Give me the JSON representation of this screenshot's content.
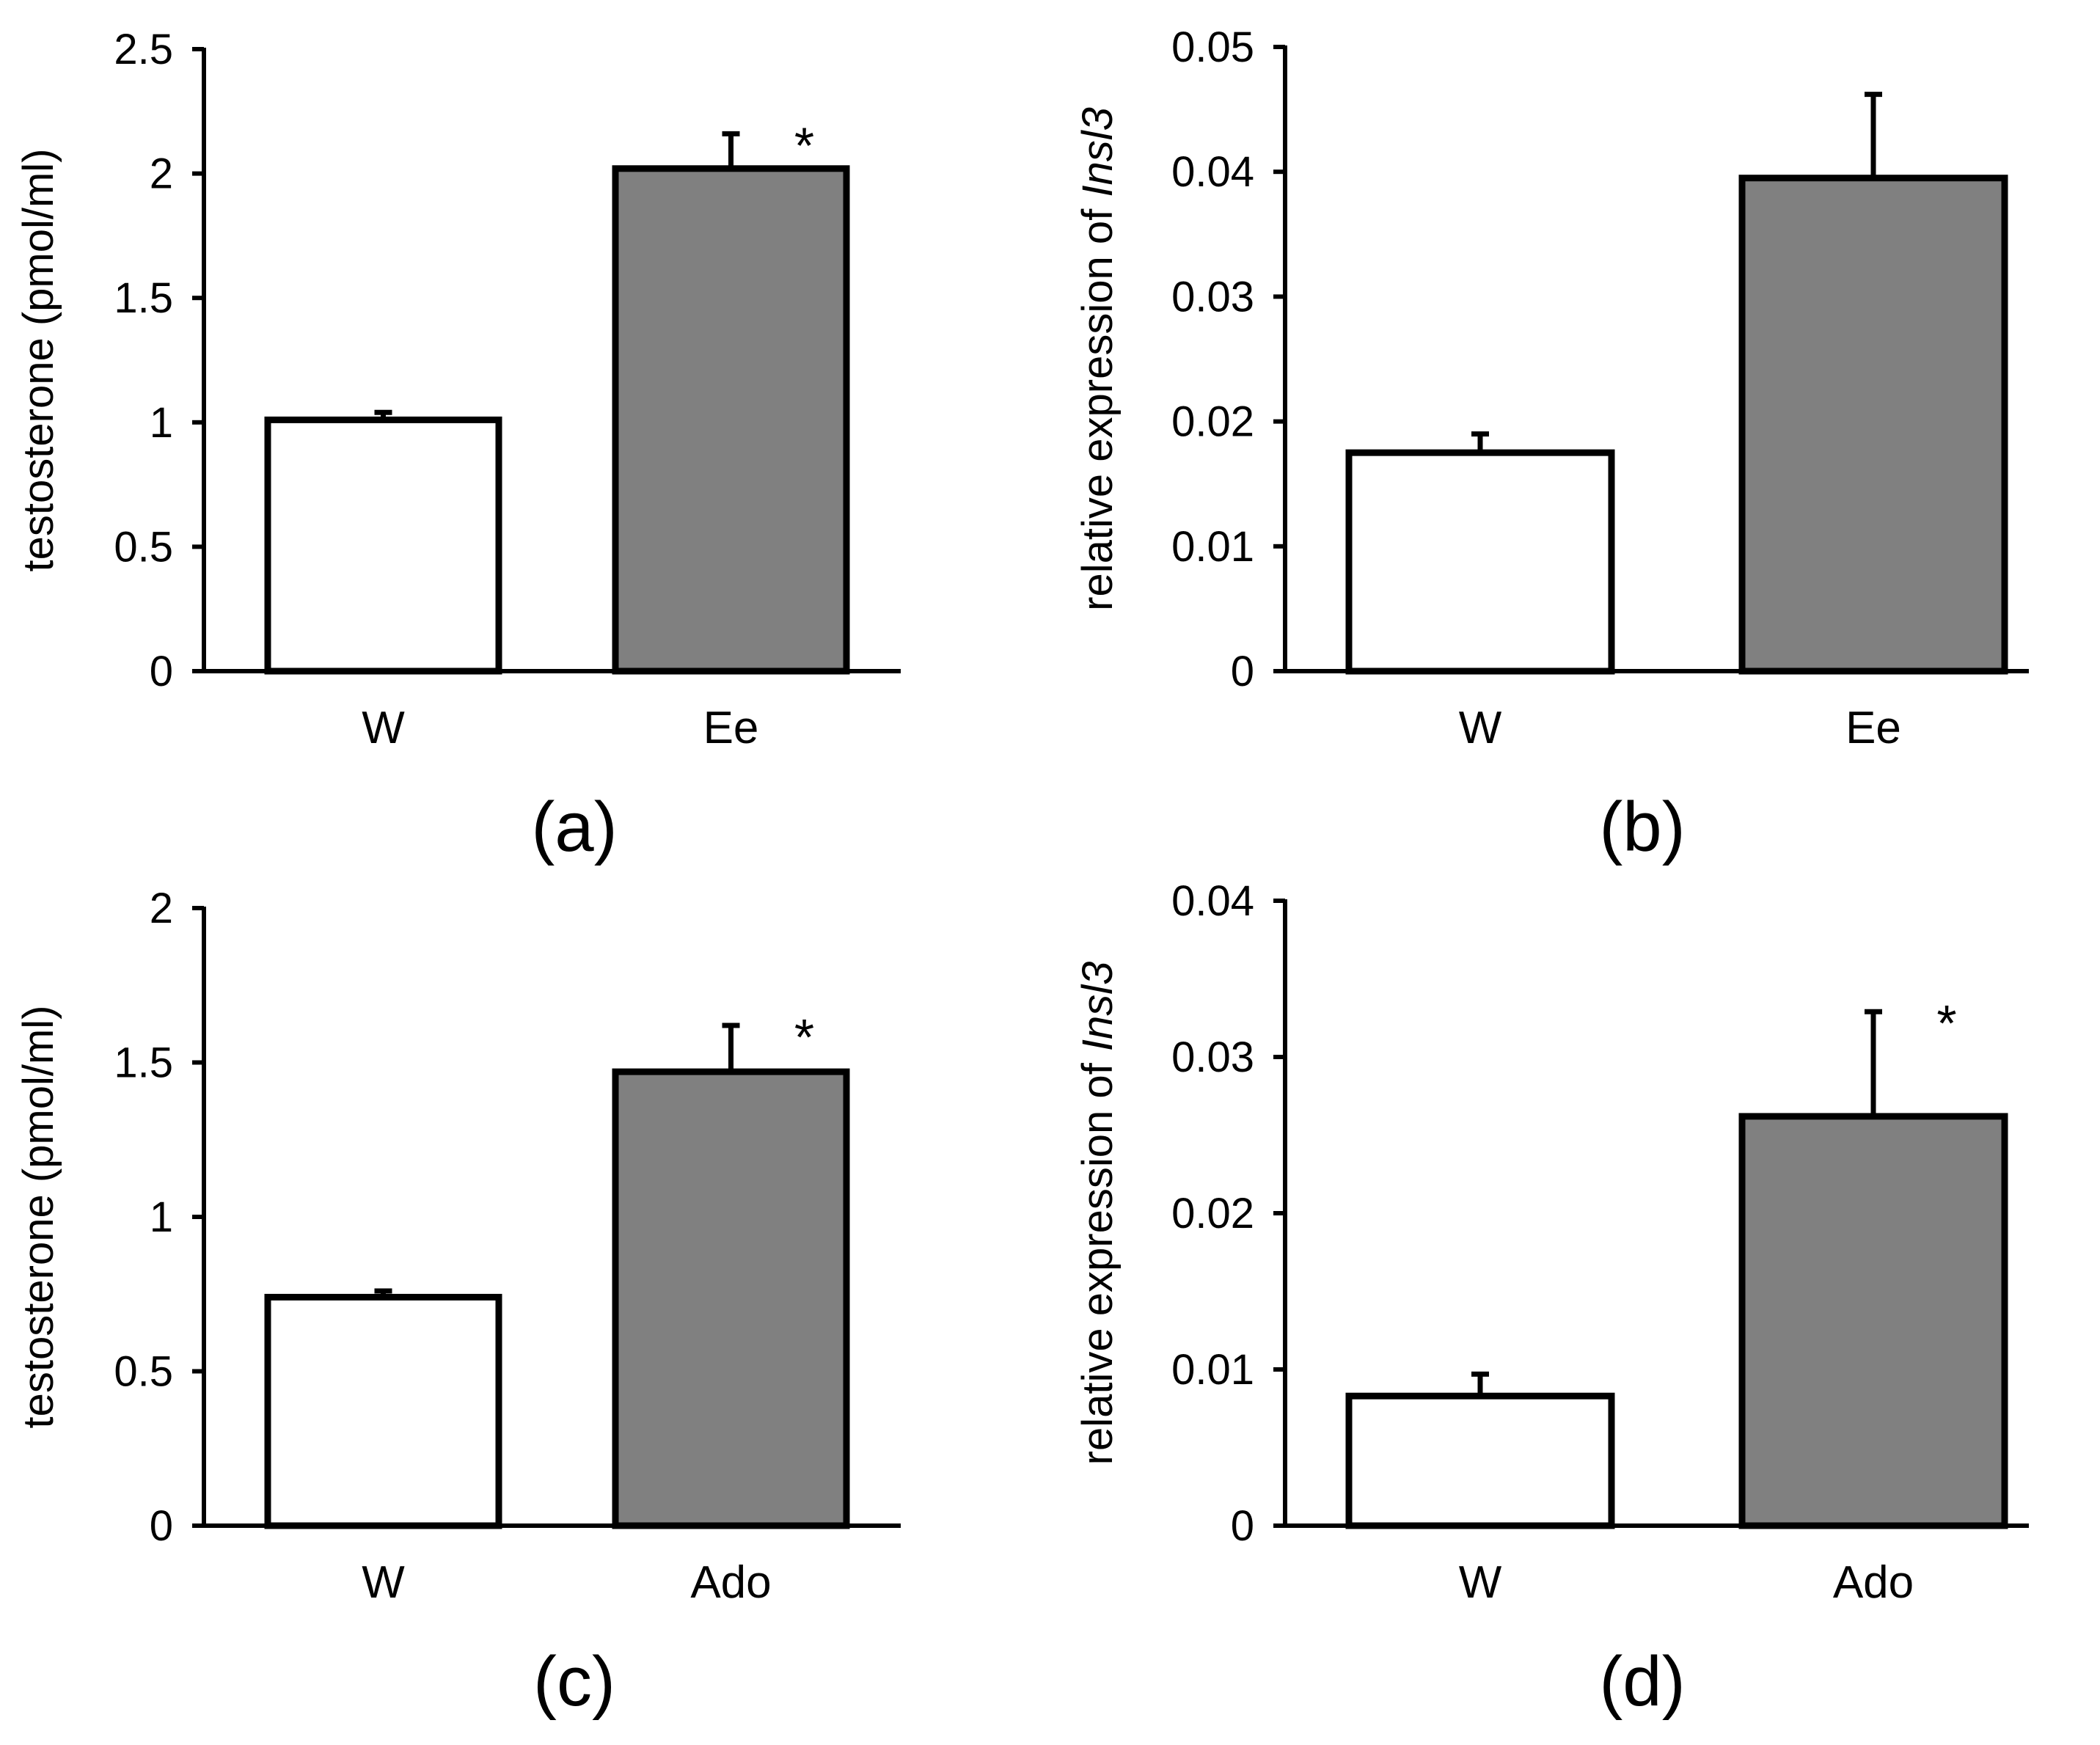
{
  "chart_data": [
    {
      "type": "bar",
      "panel_label": "(a)",
      "title": "",
      "xlabel": "",
      "ylabel": "testosterone (pmol/ml)",
      "ylabel_italic": "",
      "ylim": [
        0,
        2.5
      ],
      "yticks": [
        "0",
        "0.5",
        "1",
        "1.5",
        "2",
        "2.5"
      ],
      "categories": [
        "W",
        "Ee"
      ],
      "values": [
        1.01,
        2.02
      ],
      "errors": [
        0.03,
        0.14
      ],
      "colors": [
        "#ffffff",
        "#808080"
      ],
      "significance": [
        "",
        "*"
      ]
    },
    {
      "type": "bar",
      "panel_label": "(b)",
      "title": "",
      "xlabel": "",
      "ylabel": "relative expression of ",
      "ylabel_italic": "Insl3",
      "ylim": [
        0,
        0.05
      ],
      "yticks": [
        "0",
        "0.01",
        "0.02",
        "0.03",
        "0.04",
        "0.05"
      ],
      "categories": [
        "W",
        "Ee"
      ],
      "values": [
        0.0175,
        0.0395
      ],
      "errors": [
        0.0015,
        0.0067
      ],
      "colors": [
        "#ffffff",
        "#808080"
      ],
      "significance": [
        "",
        ""
      ]
    },
    {
      "type": "bar",
      "panel_label": "(c)",
      "title": "",
      "xlabel": "",
      "ylabel": "testosterone (pmol/ml)",
      "ylabel_italic": "",
      "ylim": [
        0,
        2
      ],
      "yticks": [
        "0",
        "0.5",
        "1",
        "1.5",
        "2"
      ],
      "categories": [
        "W",
        "Ado"
      ],
      "values": [
        0.74,
        1.47
      ],
      "errors": [
        0.02,
        0.15
      ],
      "colors": [
        "#ffffff",
        "#808080"
      ],
      "significance": [
        "",
        "*"
      ]
    },
    {
      "type": "bar",
      "panel_label": "(d)",
      "title": "",
      "xlabel": "",
      "ylabel": "relative expression of ",
      "ylabel_italic": "Insl3",
      "ylim": [
        0,
        0.04
      ],
      "yticks": [
        "0",
        "0.01",
        "0.02",
        "0.03",
        "0.04"
      ],
      "categories": [
        "W",
        "Ado"
      ],
      "values": [
        0.0083,
        0.0262
      ],
      "errors": [
        0.0014,
        0.0067
      ],
      "colors": [
        "#ffffff",
        "#808080"
      ],
      "significance": [
        "",
        "*"
      ]
    }
  ]
}
